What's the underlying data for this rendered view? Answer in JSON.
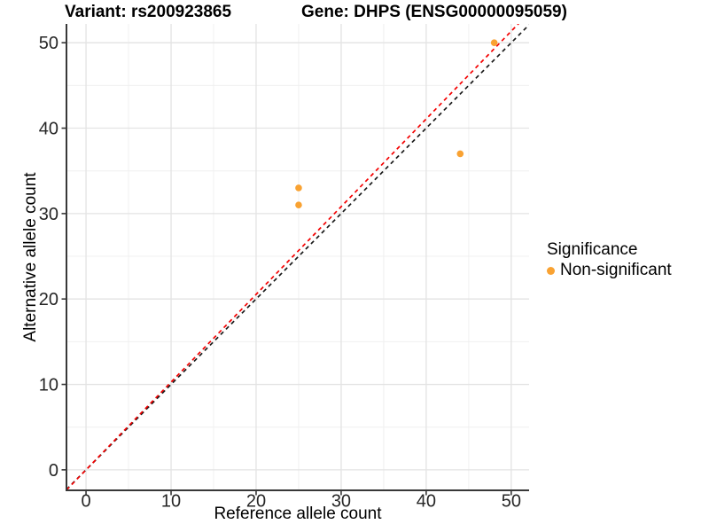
{
  "header": {
    "variant_title": "Variant: rs200923865",
    "gene_title": "Gene: DHPS (ENSG00000095059)"
  },
  "legend": {
    "title": "Significance",
    "items": [
      {
        "label": "Non-significant",
        "color": "#F9A232",
        "marker": "circle-icon"
      }
    ]
  },
  "chart_data": {
    "type": "scatter",
    "title": "Variant: rs200923865   Gene: DHPS (ENSG00000095059)",
    "xlabel": "Reference allele count",
    "ylabel": "Alternative allele count",
    "xlim": [
      -2.3,
      52.1
    ],
    "ylim": [
      -2.4,
      52.2
    ],
    "x_ticks": [
      0,
      10,
      20,
      30,
      40,
      50
    ],
    "y_ticks": [
      0,
      10,
      20,
      30,
      40,
      50
    ],
    "x_minor_ticks": [
      5,
      15,
      25,
      35,
      45
    ],
    "y_minor_ticks": [
      5,
      15,
      25,
      35,
      45
    ],
    "grid": "on",
    "legend_position": "right",
    "series": [
      {
        "name": "Non-significant",
        "color": "#F9A232",
        "points": [
          {
            "x": 25,
            "y": 31
          },
          {
            "x": 25,
            "y": 33
          },
          {
            "x": 44,
            "y": 37
          },
          {
            "x": 48,
            "y": 50
          }
        ]
      }
    ],
    "reference_lines": [
      {
        "name": "identity-line",
        "slope": 1.0,
        "intercept": 0,
        "color": "#1a1a1a",
        "style": "dashed"
      },
      {
        "name": "expected-ratio-line",
        "slope": 1.027,
        "intercept": 0,
        "color": "#F40000",
        "style": "dashed"
      }
    ]
  },
  "colors": {
    "background": "#FFFFFF",
    "grid_major": "#E3E3E3",
    "grid_minor": "#F0F0F0",
    "axis_line": "#383838",
    "tick_label": "#262626",
    "point": "#F9A232"
  }
}
